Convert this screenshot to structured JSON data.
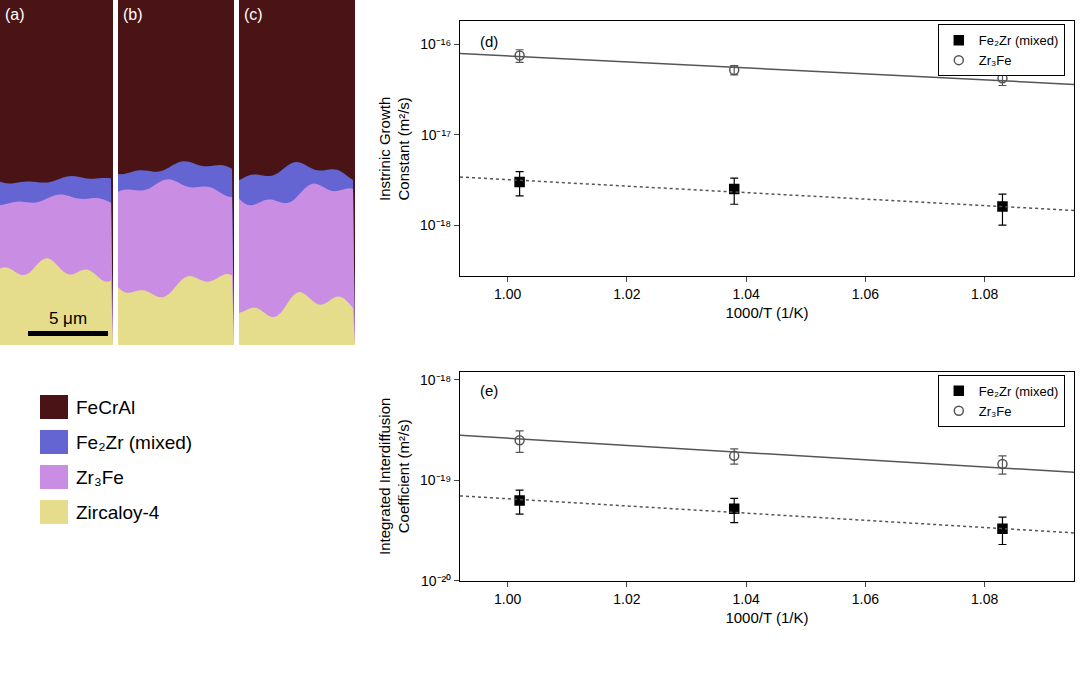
{
  "micrograph": {
    "panels": [
      "(a)",
      "(b)",
      "(c)"
    ],
    "scale_bar": "5 μm",
    "legend": [
      {
        "label": "FeCrAl",
        "color": "#4a1416"
      },
      {
        "label": "Fe₂Zr (mixed)",
        "color": "#6464d2"
      },
      {
        "label": "Zr₃Fe",
        "color": "#c98ee3"
      },
      {
        "label": "Zircaloy-4",
        "color": "#e6dd8c"
      }
    ]
  },
  "chart_data": [
    {
      "type": "scatter",
      "panel": "(d)",
      "x_label": "1000/T (1/K)",
      "y_label": "Instrinic Growth Constant (m²/s)",
      "log": "y",
      "grid": false,
      "legend": "top right",
      "xlim": [
        0.992,
        1.095
      ],
      "xticks": [
        {
          "value": 1.0,
          "label": "1.00"
        },
        {
          "value": 1.02,
          "label": "1.02"
        },
        {
          "value": 1.04,
          "label": "1.04"
        },
        {
          "value": 1.06,
          "label": "1.06"
        },
        {
          "value": 1.08,
          "label": "1.08"
        }
      ],
      "ylim": [
        2.7e-19,
        1.8e-16
      ],
      "yticks": [
        {
          "value": 1e-18,
          "label": "10⁻¹⁸"
        },
        {
          "value": 1e-17,
          "label": "10⁻¹⁷"
        },
        {
          "value": 1e-16,
          "label": "10⁻¹⁶"
        }
      ],
      "series": [
        {
          "name": "Fe₂Zr (mixed)",
          "type": "scatter",
          "marker": "square",
          "color": "#000000",
          "x": [
            1.002,
            1.038,
            1.083
          ],
          "values": [
            3e-18,
            2.5e-18,
            1.6e-18
          ],
          "error": [
            9e-19,
            8e-19,
            6e-19
          ]
        },
        {
          "name": "Zr₃Fe",
          "type": "scatter",
          "marker": "circle-open",
          "color": "#555555",
          "x": [
            1.002,
            1.038,
            1.083
          ],
          "values": [
            7.5e-17,
            5.2e-17,
            4.2e-17
          ],
          "error": [
            1.2e-17,
            6e-18,
            7e-18
          ]
        },
        {
          "type": "line",
          "line_style": "solid",
          "color": "#555555",
          "x": [
            0.992,
            1.095
          ],
          "values": [
            7.9e-17,
            3.6e-17
          ]
        },
        {
          "type": "line",
          "line_style": "dot",
          "color": "#555555",
          "x": [
            0.992,
            1.095
          ],
          "values": [
            3.4e-18,
            1.45e-18
          ]
        }
      ]
    },
    {
      "type": "scatter",
      "panel": "(e)",
      "x_label": "1000/T (1/K)",
      "y_label": "Integrated Interdiffusion Coefficient (m²/s)",
      "log": "y",
      "grid": false,
      "legend": "top right",
      "xlim": [
        0.992,
        1.095
      ],
      "xticks": [
        {
          "value": 1.0,
          "label": "1.00"
        },
        {
          "value": 1.02,
          "label": "1.02"
        },
        {
          "value": 1.04,
          "label": "1.04"
        },
        {
          "value": 1.06,
          "label": "1.06"
        },
        {
          "value": 1.08,
          "label": "1.08"
        }
      ],
      "ylim": [
        1e-20,
        1.2e-18
      ],
      "yticks": [
        {
          "value": 1e-20,
          "label": "10⁻²⁰"
        },
        {
          "value": 1e-19,
          "label": "10⁻¹⁹"
        },
        {
          "value": 1e-18,
          "label": "10⁻¹⁸"
        }
      ],
      "series": [
        {
          "name": "Fe₂Zr (mixed)",
          "type": "scatter",
          "marker": "square",
          "color": "#000000",
          "x": [
            1.002,
            1.038,
            1.083
          ],
          "values": [
            6.3e-20,
            5.2e-20,
            3.3e-20
          ],
          "error": [
            1.7e-20,
            1.4e-20,
            1e-20
          ]
        },
        {
          "name": "Zr₃Fe",
          "type": "scatter",
          "marker": "circle-open",
          "color": "#555555",
          "x": [
            1.002,
            1.038,
            1.083
          ],
          "values": [
            2.5e-19,
            1.75e-19,
            1.45e-19
          ],
          "error": [
            6e-20,
            3e-20,
            3e-20
          ]
        },
        {
          "type": "line",
          "line_style": "solid",
          "color": "#555555",
          "x": [
            0.992,
            1.095
          ],
          "values": [
            2.8e-19,
            1.2e-19
          ]
        },
        {
          "type": "line",
          "line_style": "dot",
          "color": "#555555",
          "x": [
            0.992,
            1.095
          ],
          "values": [
            7e-20,
            3e-20
          ]
        }
      ]
    }
  ]
}
